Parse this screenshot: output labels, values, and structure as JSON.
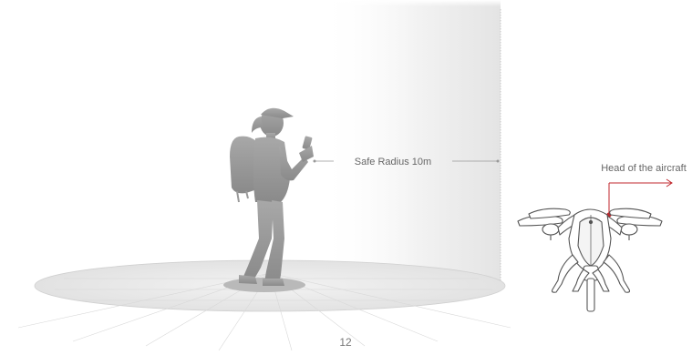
{
  "labels": {
    "safe_radius": "Safe Radius 10m",
    "head_of_aircraft": "Head of the aircraft"
  },
  "page": {
    "number": "12"
  },
  "colors": {
    "accent": "#c0272d",
    "silhouette": "#9a9a9a",
    "ground": "#ececec",
    "wall": "#e8e8e8"
  },
  "icons": {
    "person": "person-with-backpack-and-phone-icon",
    "drone": "aircraft-drone-icon"
  }
}
